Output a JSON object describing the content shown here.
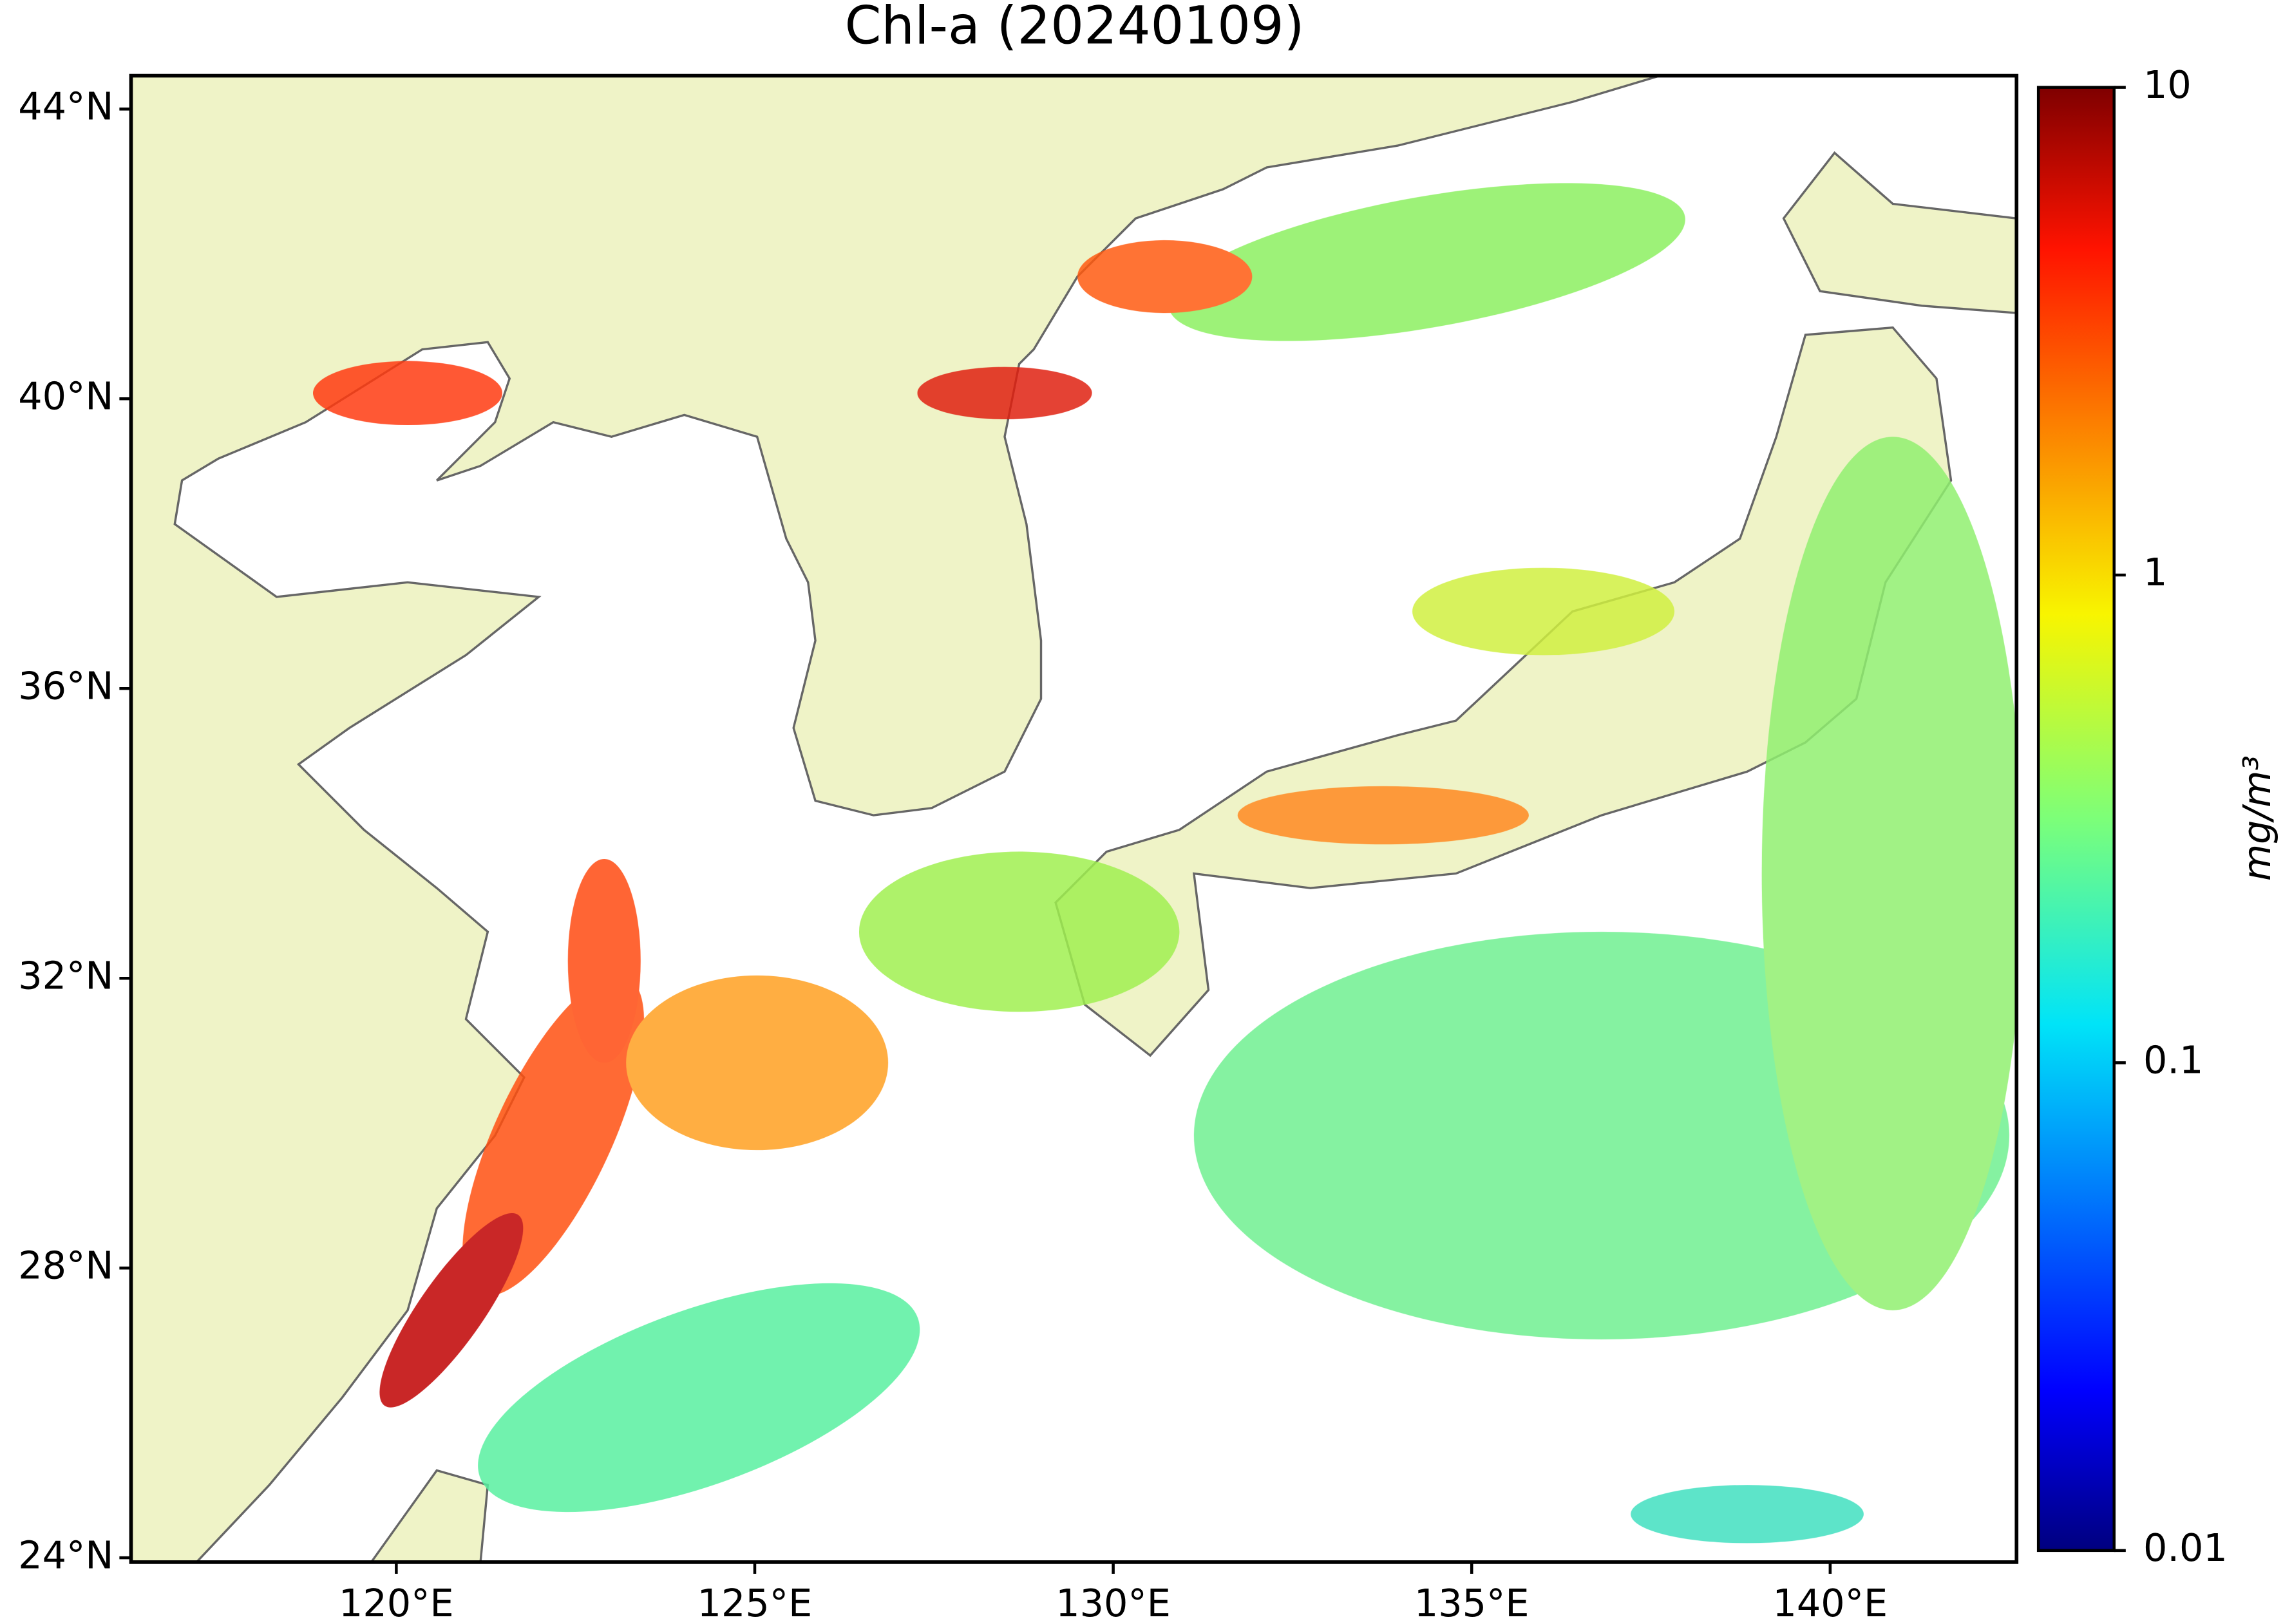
{
  "chart_data": {
    "type": "map",
    "title": "Chl-a (20240109)",
    "xlim": [
      116.3,
      142.6
    ],
    "ylim": [
      23.94,
      44.46
    ],
    "xticks": [
      {
        "value": 120,
        "label": "120°E"
      },
      {
        "value": 125,
        "label": "125°E"
      },
      {
        "value": 130,
        "label": "130°E"
      },
      {
        "value": 135,
        "label": "135°E"
      },
      {
        "value": 140,
        "label": "140°E"
      }
    ],
    "yticks": [
      {
        "value": 24,
        "label": "24°N"
      },
      {
        "value": 28,
        "label": "28°N"
      },
      {
        "value": 32,
        "label": "32°N"
      },
      {
        "value": 36,
        "label": "36°N"
      },
      {
        "value": 40,
        "label": "40°N"
      },
      {
        "value": 44,
        "label": "44°N"
      }
    ],
    "colorbar": {
      "label": "mg/m³",
      "lim": [
        0.01,
        10
      ],
      "log_scale": true,
      "ticks": [
        0.01,
        0.1,
        1,
        10
      ]
    }
  }
}
